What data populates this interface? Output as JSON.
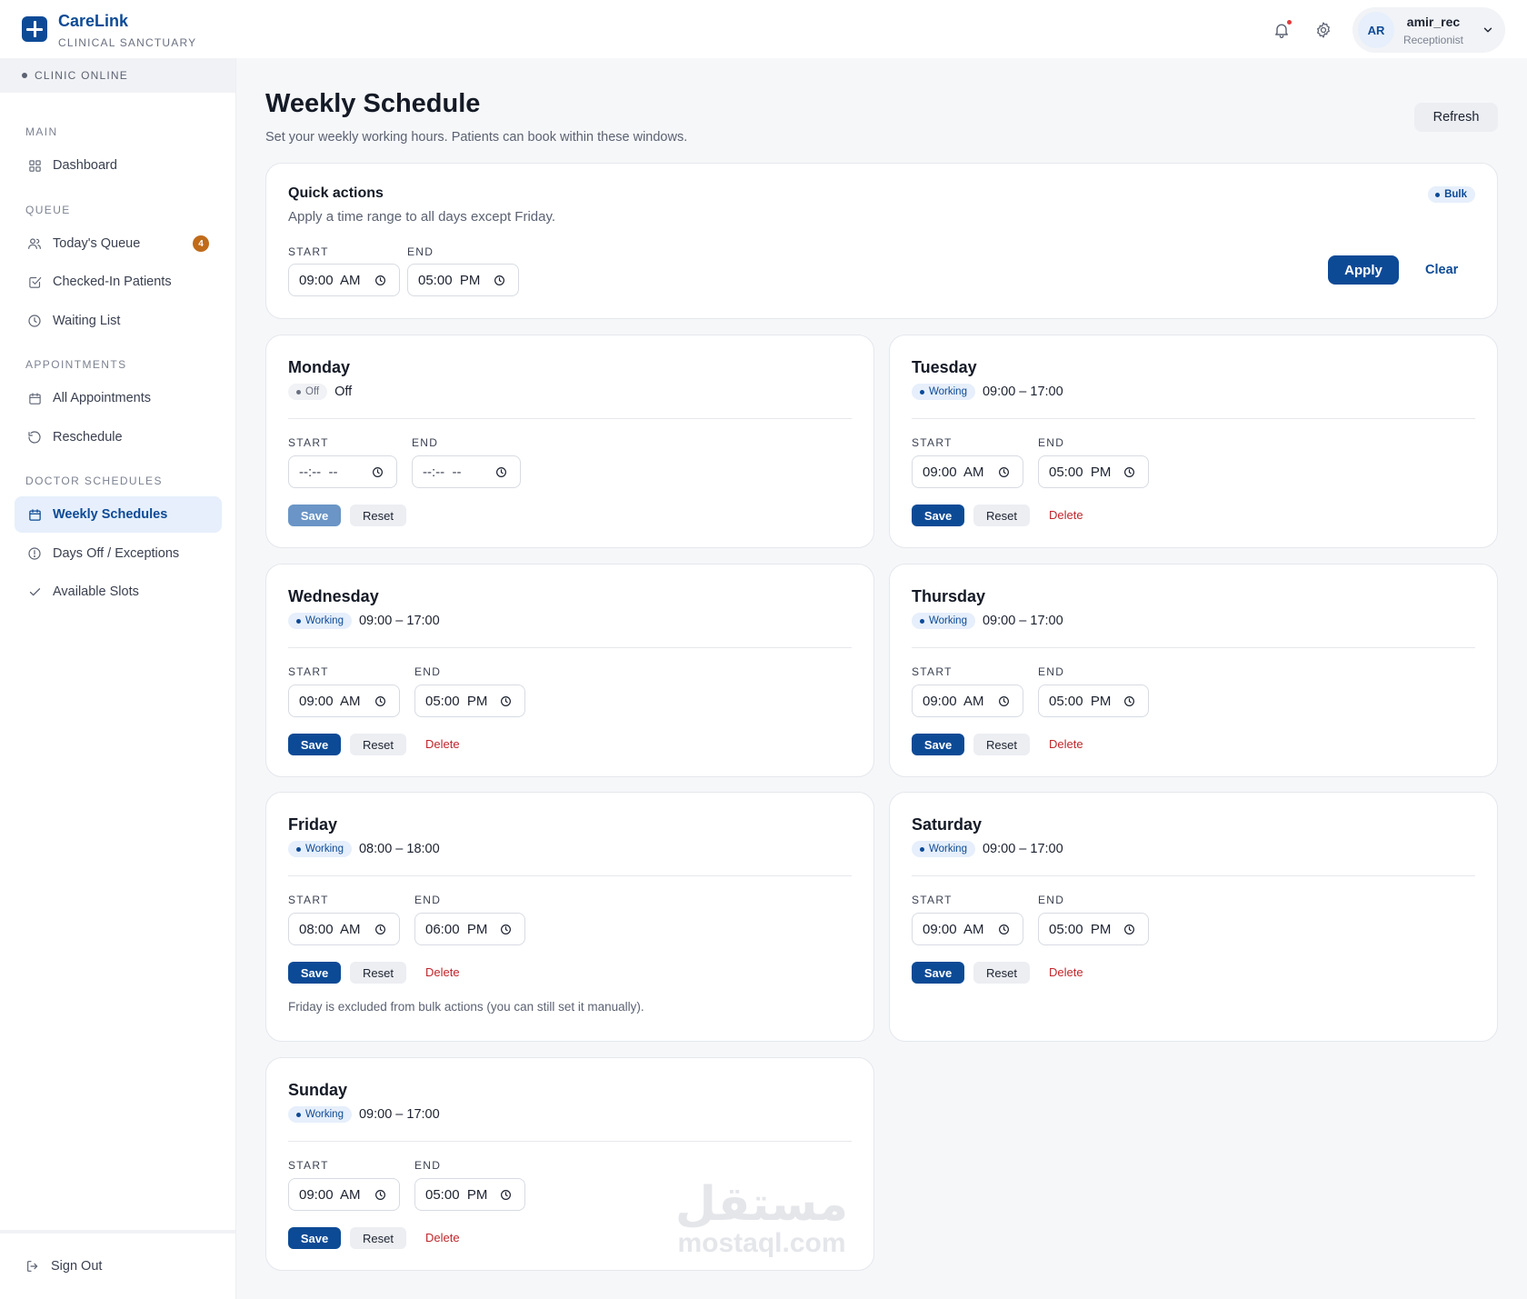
{
  "header": {
    "brand_name": "CareLink",
    "brand_sub": "CLINICAL SANCTUARY",
    "user_initials": "AR",
    "user_name": "amir_rec",
    "user_role": "Receptionist"
  },
  "sidebar": {
    "status": "CLINIC ONLINE",
    "sections": {
      "main": "MAIN",
      "queue": "QUEUE",
      "appointments": "APPOINTMENTS",
      "doctor_schedules": "DOCTOR SCHEDULES"
    },
    "items": {
      "dashboard": "Dashboard",
      "todays_queue": "Today's Queue",
      "todays_queue_badge": "4",
      "checked_in": "Checked-In Patients",
      "waiting_list": "Waiting List",
      "all_appointments": "All Appointments",
      "reschedule": "Reschedule",
      "weekly_schedules": "Weekly Schedules",
      "days_off": "Days Off / Exceptions",
      "available_slots": "Available Slots"
    },
    "sign_out": "Sign Out"
  },
  "page": {
    "title": "Weekly Schedule",
    "subtitle": "Set your weekly working hours. Patients can book within these windows.",
    "refresh_label": "Refresh"
  },
  "quick_actions": {
    "title": "Quick actions",
    "subtitle": "Apply a time range to all days except Friday.",
    "badge": "Bulk",
    "start_label": "START",
    "end_label": "END",
    "start_value": "09:00  AM",
    "end_value": "05:00  PM",
    "apply_label": "Apply",
    "clear_label": "Clear"
  },
  "labels": {
    "start": "START",
    "end": "END",
    "save": "Save",
    "reset": "Reset",
    "delete": "Delete"
  },
  "days": {
    "monday": {
      "name": "Monday",
      "status": "Off",
      "hours": "Off",
      "start": "--:--  --",
      "end": "--:--  --"
    },
    "tuesday": {
      "name": "Tuesday",
      "status": "Working",
      "hours": "09:00 – 17:00",
      "start": "09:00  AM",
      "end": "05:00  PM"
    },
    "wednesday": {
      "name": "Wednesday",
      "status": "Working",
      "hours": "09:00 – 17:00",
      "start": "09:00  AM",
      "end": "05:00  PM"
    },
    "thursday": {
      "name": "Thursday",
      "status": "Working",
      "hours": "09:00 – 17:00",
      "start": "09:00  AM",
      "end": "05:00  PM"
    },
    "friday": {
      "name": "Friday",
      "status": "Working",
      "hours": "08:00 – 18:00",
      "start": "08:00  AM",
      "end": "06:00  PM",
      "note": "Friday is excluded from bulk actions (you can still set it manually)."
    },
    "saturday": {
      "name": "Saturday",
      "status": "Working",
      "hours": "09:00 – 17:00",
      "start": "09:00  AM",
      "end": "05:00  PM"
    },
    "sunday": {
      "name": "Sunday",
      "status": "Working",
      "hours": "09:00 – 17:00",
      "start": "09:00  AM",
      "end": "05:00  PM"
    }
  },
  "watermark": {
    "arabic": "مستقل",
    "latin": "mostaql.com"
  },
  "colors": {
    "primary": "#0d4a96",
    "delete": "#c0262b",
    "badge": "#c06b1a",
    "background": "#f6f7f9"
  }
}
